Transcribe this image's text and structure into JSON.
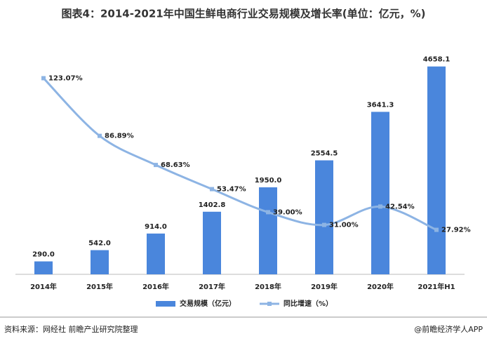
{
  "chart_data": {
    "type": "bar-line",
    "title": "图表4：2014-2021年中国生鲜电商行业交易规模及增长率(单位：亿元，%)",
    "categories": [
      "2014年",
      "2015年",
      "2016年",
      "2017年",
      "2018年",
      "2019年",
      "2020年",
      "2021年H1"
    ],
    "series": [
      {
        "name": "交易规模（亿元）",
        "type": "bar",
        "color": "#4a86dc",
        "values": [
          290,
          542,
          914,
          1402.8,
          1950,
          2554.5,
          3641.3,
          4658.1
        ],
        "value_labels": [
          "290.0",
          "542.0",
          "914.0",
          "1402.8",
          "1950.0",
          "2554.5",
          "3641.3",
          "4658.1"
        ]
      },
      {
        "name": "同比增速（%）",
        "type": "line",
        "axis": "y2",
        "color": "#8db4e4",
        "values": [
          123.07,
          86.89,
          68.63,
          53.47,
          39.0,
          31.0,
          42.54,
          27.92
        ],
        "value_labels": [
          "123.07%",
          "86.89%",
          "68.63%",
          "53.47%",
          "39.00%",
          "31.00%",
          "42.54%",
          "27.92%"
        ]
      }
    ],
    "ylim": [
      0,
      5000
    ],
    "y2lim": [
      0,
      140
    ],
    "legend": "bottom",
    "source": "资料来源：网经社 前瞻产业研究院整理",
    "credit": "@前瞻经济学人APP"
  }
}
